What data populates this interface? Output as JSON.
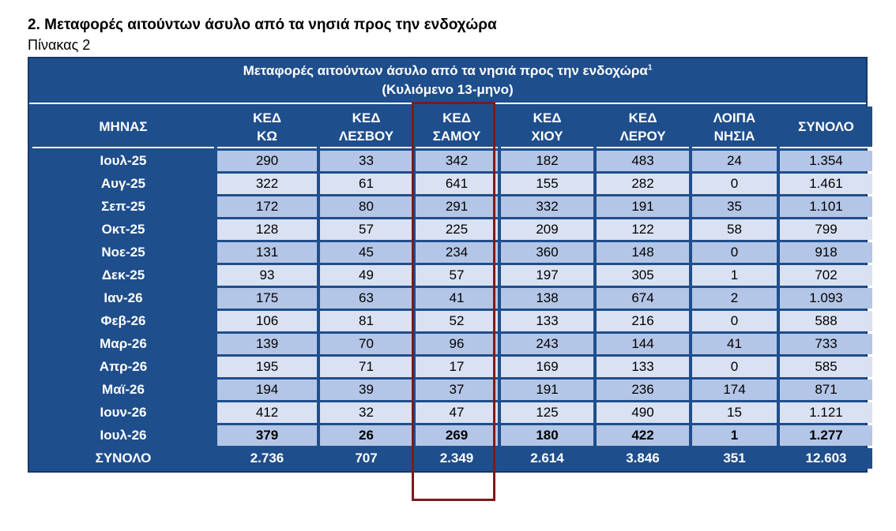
{
  "heading": {
    "section_title": "2. Μεταφορές αιτούντων άσυλο από τα νησιά προς την ενδοχώρα",
    "table_label": "Πίνακας 2"
  },
  "table": {
    "title": "Μεταφορές αιτούντων άσυλο από τα νησιά προς την ενδοχώρα",
    "title_footnote": "1",
    "subtitle": "(Κυλιόμενο 13-μηνο)",
    "highlighted_column": "ΚΕΔ ΣΑΜΟΥ",
    "highlight_color": "#7b1b1b",
    "header_color": "#1f4e8c",
    "columns": [
      {
        "line1": "ΜΗΝΑΣ",
        "line2": ""
      },
      {
        "line1": "ΚΕΔ",
        "line2": "ΚΩ"
      },
      {
        "line1": "ΚΕΔ",
        "line2": "ΛΕΣΒΟΥ"
      },
      {
        "line1": "ΚΕΔ",
        "line2": "ΣΑΜΟΥ"
      },
      {
        "line1": "ΚΕΔ",
        "line2": "ΧΙΟΥ"
      },
      {
        "line1": "ΚΕΔ",
        "line2": "ΛΕΡΟΥ"
      },
      {
        "line1": "ΛΟΙΠΑ",
        "line2": "ΝΗΣΙΑ"
      },
      {
        "line1": "ΣΥΝΟΛΟ",
        "line2": ""
      }
    ],
    "rows": [
      [
        "Ιουλ-25",
        "290",
        "33",
        "342",
        "182",
        "483",
        "24",
        "1.354"
      ],
      [
        "Αυγ-25",
        "322",
        "61",
        "641",
        "155",
        "282",
        "0",
        "1.461"
      ],
      [
        "Σεπ-25",
        "172",
        "80",
        "291",
        "332",
        "191",
        "35",
        "1.101"
      ],
      [
        "Οκτ-25",
        "128",
        "57",
        "225",
        "209",
        "122",
        "58",
        "799"
      ],
      [
        "Νοε-25",
        "131",
        "45",
        "234",
        "360",
        "148",
        "0",
        "918"
      ],
      [
        "Δεκ-25",
        "93",
        "49",
        "57",
        "197",
        "305",
        "1",
        "702"
      ],
      [
        "Ιαν-26",
        "175",
        "63",
        "41",
        "138",
        "674",
        "2",
        "1.093"
      ],
      [
        "Φεβ-26",
        "106",
        "81",
        "52",
        "133",
        "216",
        "0",
        "588"
      ],
      [
        "Μαρ-26",
        "139",
        "70",
        "96",
        "243",
        "144",
        "41",
        "733"
      ],
      [
        "Απρ-26",
        "195",
        "71",
        "17",
        "169",
        "133",
        "0",
        "585"
      ],
      [
        "Μαϊ-26",
        "194",
        "39",
        "37",
        "191",
        "236",
        "174",
        "871"
      ],
      [
        "Ιουν-26",
        "412",
        "32",
        "47",
        "125",
        "490",
        "15",
        "1.121"
      ],
      [
        "Ιουλ-26",
        "379",
        "26",
        "269",
        "180",
        "422",
        "1",
        "1.277"
      ]
    ],
    "bold_row_index": 12,
    "total_row": [
      "ΣΥΝΟΛΟ",
      "2.736",
      "707",
      "2.349",
      "2.614",
      "3.846",
      "351",
      "12.603"
    ]
  }
}
